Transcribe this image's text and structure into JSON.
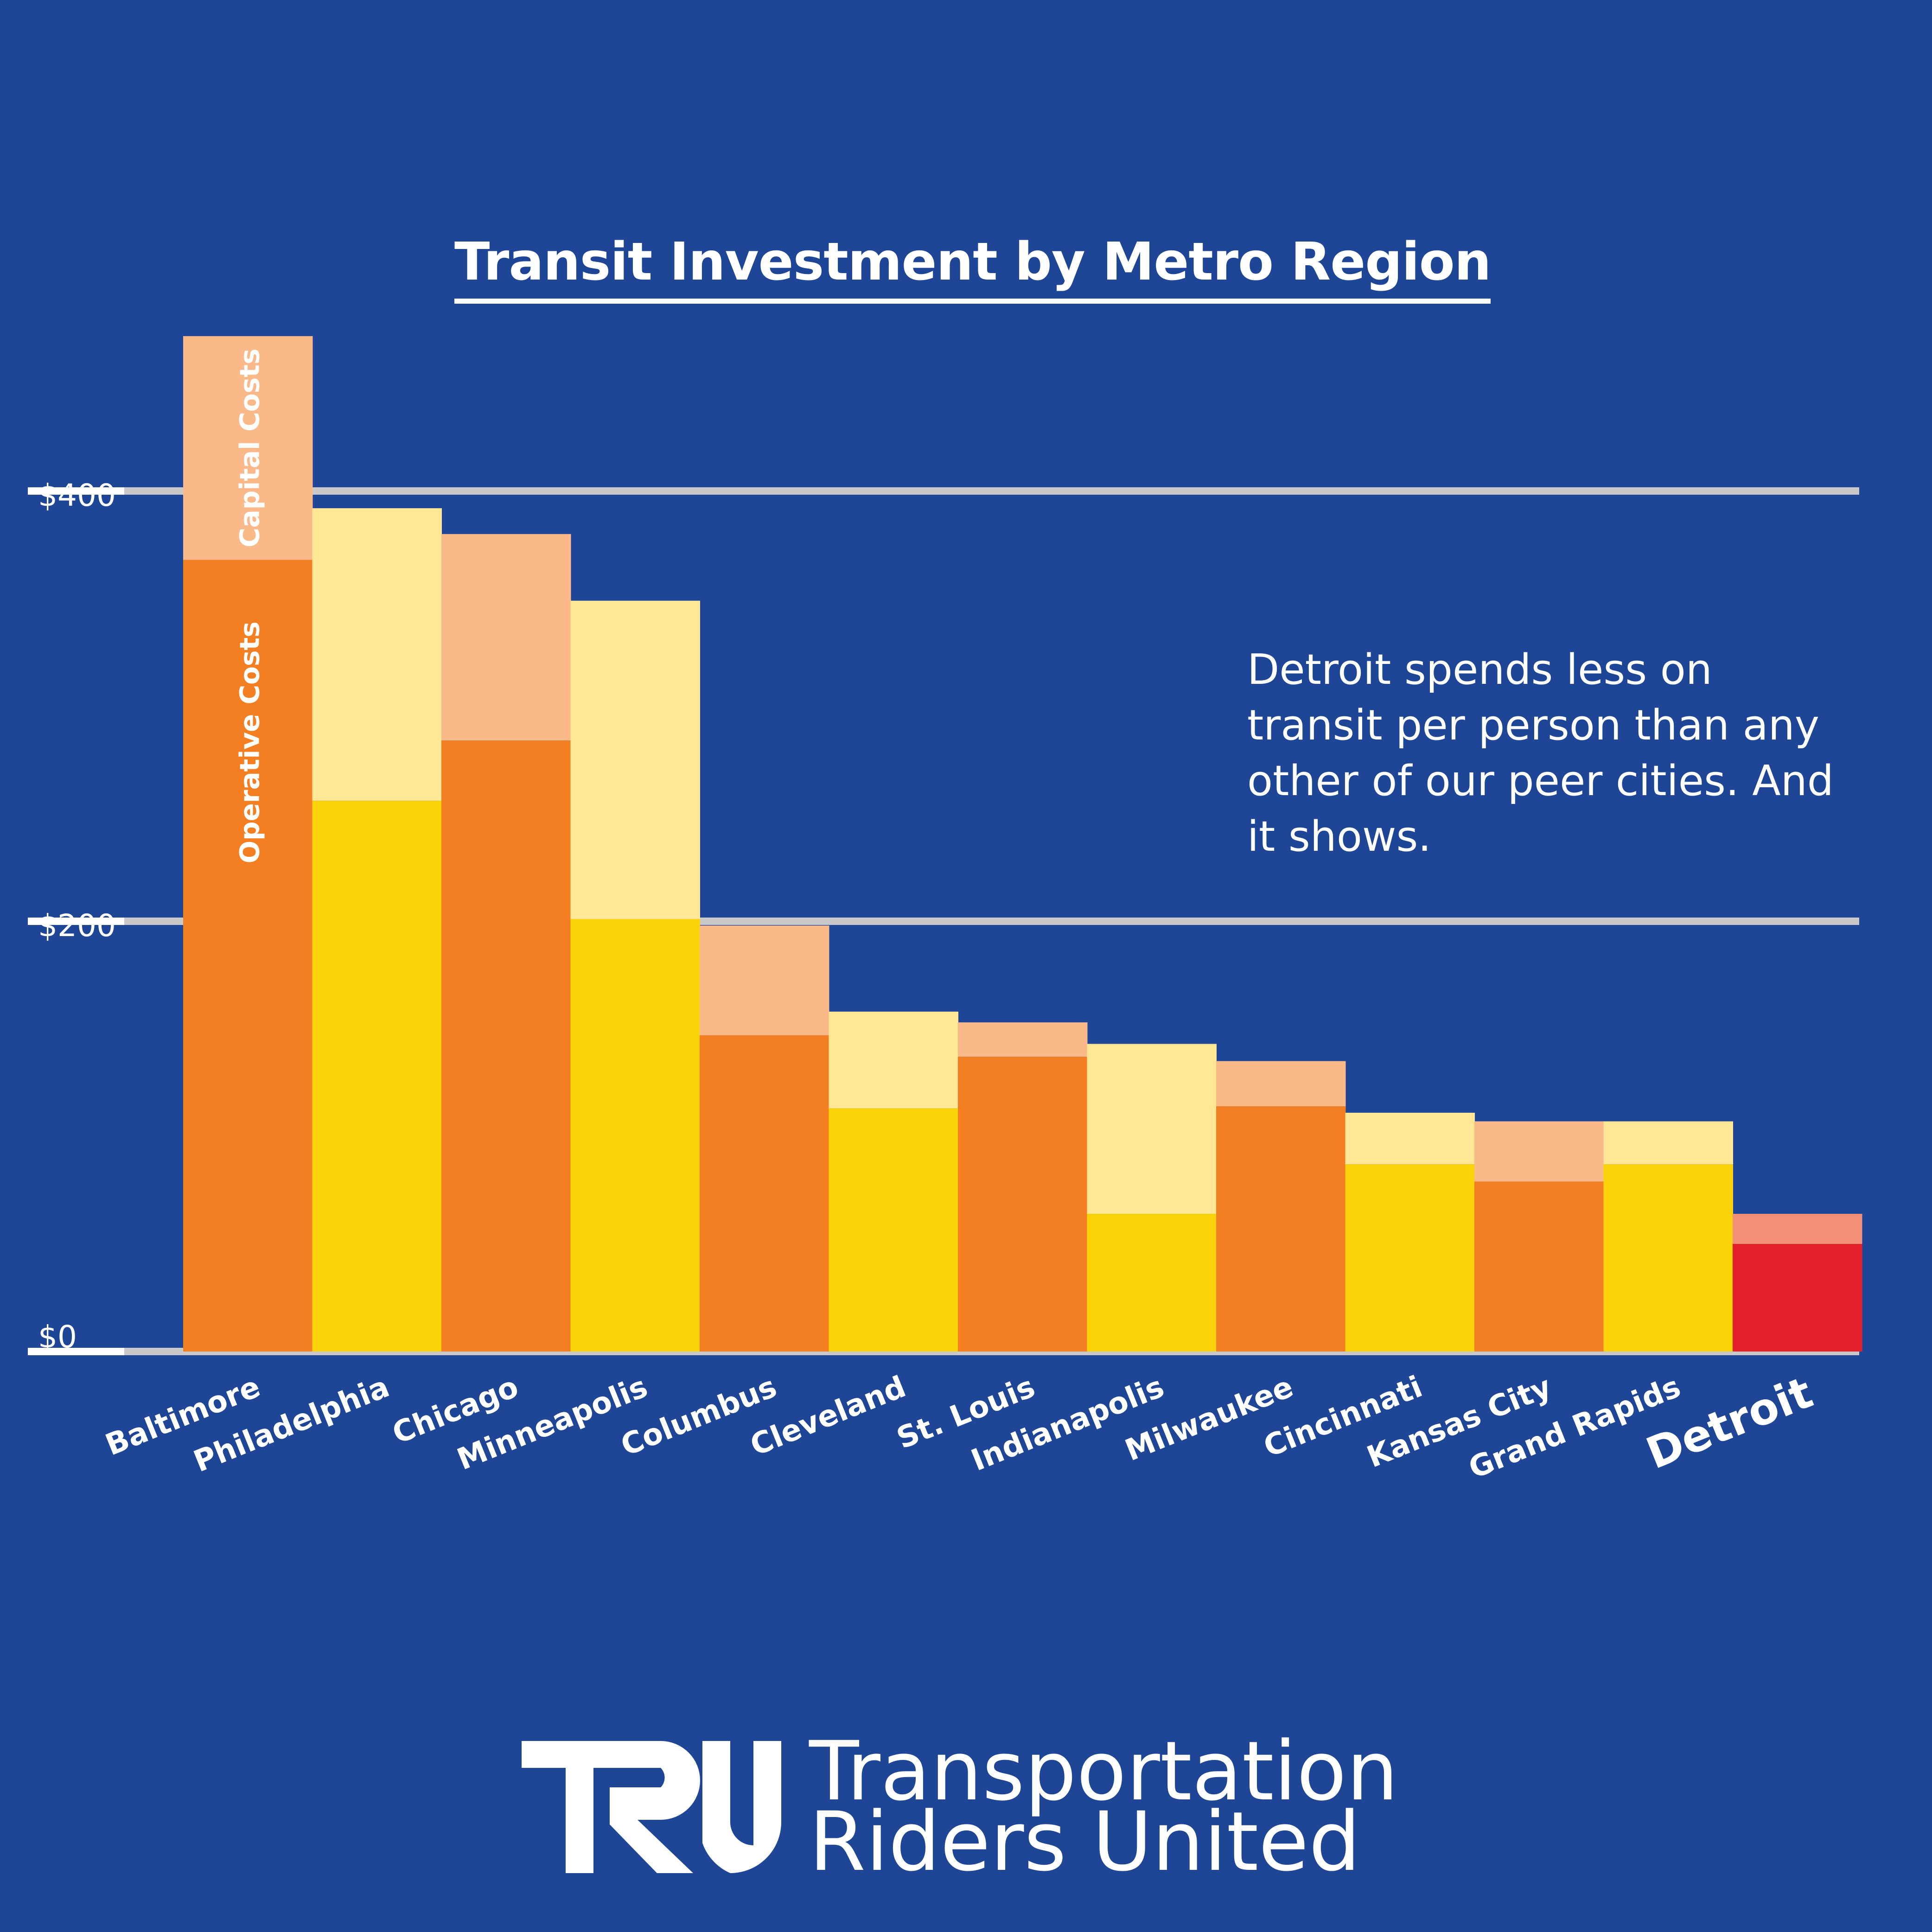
{
  "chart_data": {
    "type": "bar",
    "title": "Transit Investment by Metro Region",
    "ylim": [
      0,
      470
    ],
    "yticks": [
      {
        "value": 0,
        "label": "$0"
      },
      {
        "value": 200,
        "label": "$200"
      },
      {
        "value": 400,
        "label": "$400"
      }
    ],
    "grid": true,
    "categories": [
      "Baltimore",
      "Philadelphia",
      "Chicago",
      "Minneapolis",
      "Columbus",
      "Cleveland",
      "St. Louis",
      "Indianapolis",
      "Milwaukee",
      "Cincinnati",
      "Kansas City",
      "Grand Rapids",
      "Detroit"
    ],
    "series": [
      {
        "name": "Operative Costs",
        "values": [
          368,
          256,
          284,
          201,
          147,
          113,
          137,
          64,
          114,
          87,
          79,
          87,
          50
        ]
      },
      {
        "name": "Capital Costs",
        "values": [
          104,
          136,
          96,
          148,
          51,
          45,
          16,
          79,
          21,
          24,
          28,
          20,
          14
        ]
      }
    ],
    "colors": {
      "operative": [
        "#f37f22",
        "#fcd20a",
        "#f37f22",
        "#fcd20a",
        "#f37f22",
        "#fcd20a",
        "#f37f22",
        "#fcd20a",
        "#f37f22",
        "#fcd20a",
        "#f37f22",
        "#fcd20a",
        "#e3212b"
      ],
      "capital": [
        "#fbb98a",
        "#ffe795",
        "#fbb98a",
        "#ffe795",
        "#fbb98a",
        "#ffe795",
        "#fbb98a",
        "#ffe795",
        "#fbb98a",
        "#ffe795",
        "#fbb98a",
        "#ffe795",
        "#f28f76"
      ]
    },
    "series_labels_on_first_bar": [
      "Capital Costs",
      "Operative Costs"
    ],
    "highlight_category": "Detroit",
    "annotation": "Detroit spends less on transit per person than any other of our peer cities. And it shows."
  },
  "brand": {
    "logo_letters": "TRU",
    "line1": "Transportation",
    "line2": "Riders United"
  },
  "theme": {
    "background": "#1e4596",
    "gridline": "#c9c9c9",
    "text": "#ffffff"
  }
}
